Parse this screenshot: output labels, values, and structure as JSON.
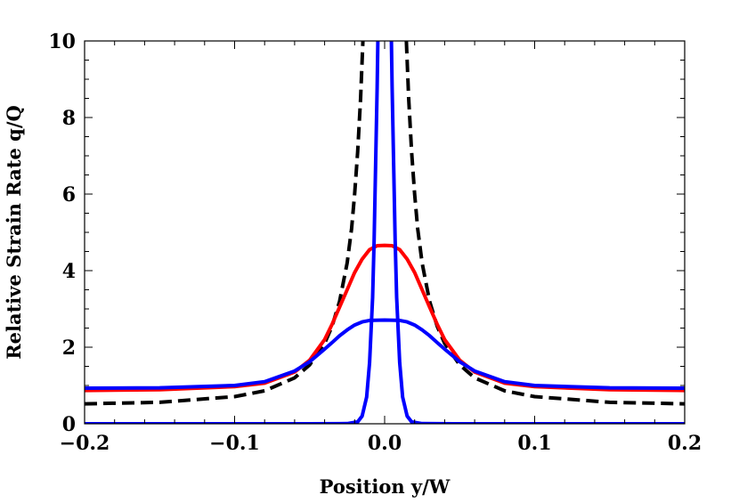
{
  "chart_data": {
    "type": "line",
    "title": "",
    "xlabel": "Position y/W",
    "ylabel": "Relative Strain Rate q/Q",
    "xlim": [
      -0.2,
      0.2
    ],
    "ylim": [
      0,
      10
    ],
    "grid": false,
    "x_ticks": [
      {
        "value": -0.2,
        "label": "−0.2"
      },
      {
        "value": -0.1,
        "label": "−0.1"
      },
      {
        "value": 0.0,
        "label": "0.0"
      },
      {
        "value": 0.1,
        "label": "0.1"
      },
      {
        "value": 0.2,
        "label": "0.2"
      }
    ],
    "y_ticks": [
      {
        "value": 0,
        "label": "0"
      },
      {
        "value": 2,
        "label": "2"
      },
      {
        "value": 4,
        "label": "4"
      },
      {
        "value": 6,
        "label": "6"
      },
      {
        "value": 8,
        "label": "8"
      },
      {
        "value": 10,
        "label": "10"
      }
    ],
    "series": [
      {
        "color": "#000000",
        "style": "dashed",
        "points": [
          [
            -0.2,
            0.52
          ],
          [
            -0.15,
            0.56
          ],
          [
            -0.1,
            0.71
          ],
          [
            -0.08,
            0.86
          ],
          [
            -0.06,
            1.2
          ],
          [
            -0.05,
            1.54
          ],
          [
            -0.04,
            2.1
          ],
          [
            -0.035,
            2.55
          ],
          [
            -0.03,
            3.2
          ],
          [
            -0.025,
            4.2
          ],
          [
            -0.022,
            5.1
          ],
          [
            -0.02,
            6.0
          ],
          [
            -0.018,
            7.1
          ],
          [
            -0.016,
            8.5
          ],
          [
            -0.0145,
            10.0
          ],
          [
            null,
            null
          ],
          [
            0.0145,
            10.0
          ],
          [
            0.016,
            8.5
          ],
          [
            0.018,
            7.1
          ],
          [
            0.02,
            6.0
          ],
          [
            0.022,
            5.1
          ],
          [
            0.025,
            4.2
          ],
          [
            0.03,
            3.2
          ],
          [
            0.035,
            2.55
          ],
          [
            0.04,
            2.1
          ],
          [
            0.05,
            1.54
          ],
          [
            0.06,
            1.2
          ],
          [
            0.08,
            0.86
          ],
          [
            0.1,
            0.71
          ],
          [
            0.15,
            0.56
          ],
          [
            0.2,
            0.52
          ]
        ]
      },
      {
        "color": "#ff0000",
        "style": "solid",
        "points": [
          [
            -0.2,
            0.87
          ],
          [
            -0.15,
            0.89
          ],
          [
            -0.1,
            0.97
          ],
          [
            -0.08,
            1.06
          ],
          [
            -0.06,
            1.35
          ],
          [
            -0.05,
            1.66
          ],
          [
            -0.04,
            2.2
          ],
          [
            -0.035,
            2.6
          ],
          [
            -0.03,
            3.05
          ],
          [
            -0.025,
            3.5
          ],
          [
            -0.02,
            3.95
          ],
          [
            -0.015,
            4.3
          ],
          [
            -0.01,
            4.55
          ],
          [
            -0.005,
            4.65
          ],
          [
            0.0,
            4.66
          ],
          [
            0.005,
            4.65
          ],
          [
            0.01,
            4.55
          ],
          [
            0.015,
            4.3
          ],
          [
            0.02,
            3.95
          ],
          [
            0.025,
            3.5
          ],
          [
            0.03,
            3.05
          ],
          [
            0.035,
            2.6
          ],
          [
            0.04,
            2.2
          ],
          [
            0.05,
            1.66
          ],
          [
            0.06,
            1.35
          ],
          [
            0.08,
            1.06
          ],
          [
            0.1,
            0.97
          ],
          [
            0.15,
            0.89
          ],
          [
            0.2,
            0.87
          ]
        ]
      },
      {
        "color": "#0000ff",
        "style": "solid",
        "points": [
          [
            -0.2,
            0.93
          ],
          [
            -0.15,
            0.94
          ],
          [
            -0.1,
            1.0
          ],
          [
            -0.08,
            1.1
          ],
          [
            -0.06,
            1.38
          ],
          [
            -0.05,
            1.62
          ],
          [
            -0.04,
            1.95
          ],
          [
            -0.035,
            2.12
          ],
          [
            -0.03,
            2.3
          ],
          [
            -0.025,
            2.45
          ],
          [
            -0.02,
            2.58
          ],
          [
            -0.015,
            2.66
          ],
          [
            -0.01,
            2.7
          ],
          [
            0.0,
            2.71
          ],
          [
            0.01,
            2.7
          ],
          [
            0.015,
            2.66
          ],
          [
            0.02,
            2.58
          ],
          [
            0.025,
            2.45
          ],
          [
            0.03,
            2.3
          ],
          [
            0.035,
            2.12
          ],
          [
            0.04,
            1.95
          ],
          [
            0.05,
            1.62
          ],
          [
            0.06,
            1.38
          ],
          [
            0.08,
            1.1
          ],
          [
            0.1,
            1.0
          ],
          [
            0.15,
            0.94
          ],
          [
            0.2,
            0.93
          ]
        ]
      },
      {
        "color": "#0000ff",
        "style": "solid",
        "points": [
          [
            -0.2,
            0.0
          ],
          [
            -0.05,
            0.0
          ],
          [
            -0.025,
            0.005
          ],
          [
            -0.018,
            0.05
          ],
          [
            -0.015,
            0.2
          ],
          [
            -0.012,
            0.7
          ],
          [
            -0.01,
            1.6
          ],
          [
            -0.008,
            3.3
          ],
          [
            -0.007,
            4.8
          ],
          [
            -0.006,
            6.8
          ],
          [
            -0.005,
            8.8
          ],
          [
            -0.0045,
            10.0
          ],
          [
            null,
            null
          ],
          [
            0.0045,
            10.0
          ],
          [
            0.005,
            8.8
          ],
          [
            0.006,
            6.8
          ],
          [
            0.007,
            4.8
          ],
          [
            0.008,
            3.3
          ],
          [
            0.01,
            1.6
          ],
          [
            0.012,
            0.7
          ],
          [
            0.015,
            0.2
          ],
          [
            0.018,
            0.05
          ],
          [
            0.025,
            0.005
          ],
          [
            0.05,
            0.0
          ],
          [
            0.2,
            0.0
          ]
        ]
      }
    ]
  }
}
